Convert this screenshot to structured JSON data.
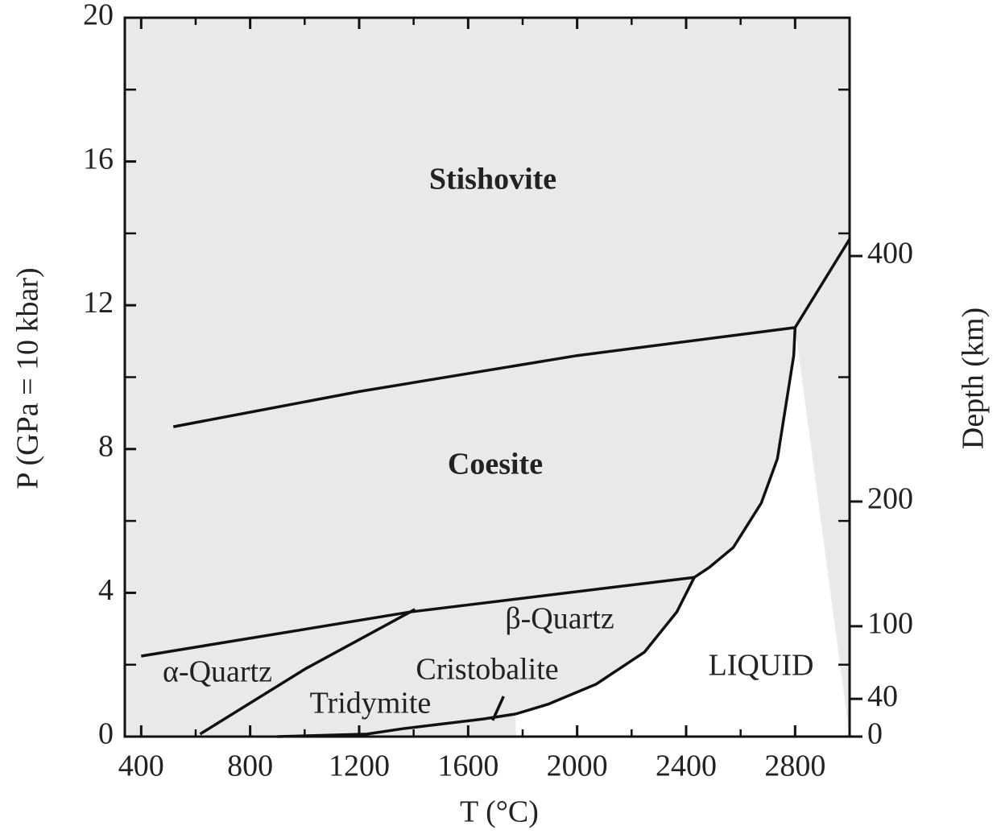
{
  "chart_data": {
    "type": "line",
    "xlabel": "T (°C)",
    "ylabel": "P (GPa = 10 kbar)",
    "y2label": "Depth (km)",
    "xlim": [
      340,
      3000
    ],
    "ylim": [
      0,
      20
    ],
    "xticks": [
      400,
      800,
      1200,
      1600,
      2000,
      2400,
      2800
    ],
    "xticks_minor": [
      600,
      1000,
      1400,
      1800,
      2200,
      2600
    ],
    "yticks": [
      0,
      4,
      8,
      12,
      16,
      20
    ],
    "yticks_minor": [
      2,
      6,
      10,
      14,
      18
    ],
    "y2ticks": [
      0,
      40,
      100,
      200,
      400
    ],
    "y2ticks_pressure": [
      0,
      1.05,
      3.07,
      6.54,
      13.37
    ],
    "series": [
      {
        "color": "#111111",
        "x": [
          518,
          1200,
          2000,
          2800
        ],
        "values": [
          8.62,
          9.6,
          10.6,
          11.38
        ]
      },
      {
        "color": "#111111",
        "x": [
          2800,
          3000
        ],
        "values": [
          11.38,
          13.84
        ]
      },
      {
        "color": "#111111",
        "x": [
          2800,
          2795,
          2735,
          2676,
          2573,
          2484,
          2430
        ],
        "values": [
          11.38,
          10.6,
          7.73,
          6.5,
          5.26,
          4.7,
          4.43
        ]
      },
      {
        "color": "#111111",
        "x": [
          400,
          1390,
          2430
        ],
        "values": [
          2.24,
          3.47,
          4.43
        ]
      },
      {
        "color": "#111111",
        "x": [
          2430,
          2366,
          2247,
          2070,
          1893,
          1775
        ],
        "values": [
          4.43,
          3.47,
          2.35,
          1.46,
          0.9,
          0.63
        ]
      },
      {
        "color": "#111111",
        "x": [
          1775,
          1656,
          1360,
          1228,
          900
        ],
        "values": [
          0.63,
          0.49,
          0.22,
          0.07,
          0
        ]
      },
      {
        "color": "#111111",
        "x": [
          616,
          1006,
          1405
        ],
        "values": [
          0.07,
          1.9,
          3.54
        ]
      },
      {
        "color": "#111111",
        "x": [
          1690,
          1730
        ],
        "values": [
          0.45,
          1.12
        ]
      }
    ],
    "annotations": [
      "Stishovite",
      "Coesite",
      "β-Quartz",
      "α-Quartz",
      "Cristobalite",
      "Tridymite",
      "LIQUID"
    ]
  }
}
